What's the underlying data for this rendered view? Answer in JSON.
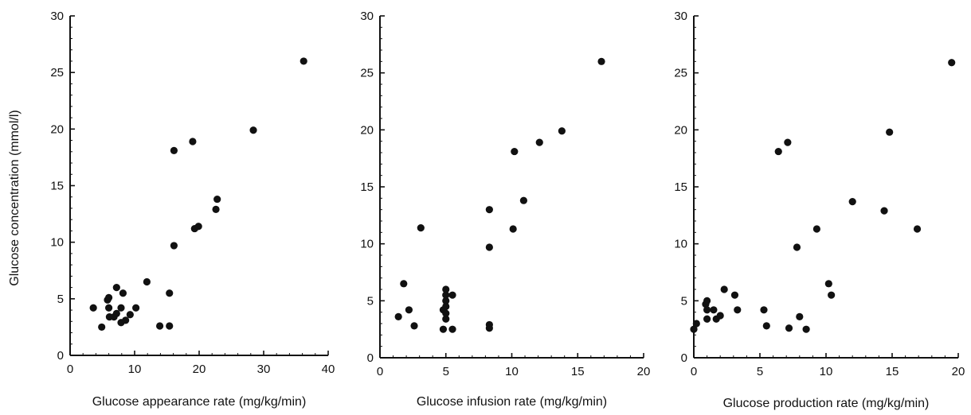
{
  "figure": {
    "y_axis_label": "Glucose concentration (mmol/l)"
  },
  "chart_data": [
    {
      "type": "scatter",
      "xlabel": "Glucose appearance rate (mg/kg/min)",
      "ylabel": "Glucose concentration (mmol/l)",
      "xlim": [
        0,
        40
      ],
      "ylim": [
        0,
        30
      ],
      "xticks": [
        0,
        10,
        20,
        30,
        40
      ],
      "yticks": [
        0,
        5,
        10,
        15,
        20,
        25,
        30
      ],
      "grid": false,
      "points": [
        {
          "x": 3.6,
          "y": 4.2
        },
        {
          "x": 4.9,
          "y": 2.5
        },
        {
          "x": 5.8,
          "y": 4.9
        },
        {
          "x": 6.0,
          "y": 5.1
        },
        {
          "x": 6.0,
          "y": 4.2
        },
        {
          "x": 6.1,
          "y": 3.4
        },
        {
          "x": 6.8,
          "y": 3.4
        },
        {
          "x": 7.2,
          "y": 3.7
        },
        {
          "x": 7.2,
          "y": 6.0
        },
        {
          "x": 7.9,
          "y": 2.9
        },
        {
          "x": 7.9,
          "y": 4.2
        },
        {
          "x": 8.2,
          "y": 5.5
        },
        {
          "x": 8.6,
          "y": 3.1
        },
        {
          "x": 9.3,
          "y": 3.6
        },
        {
          "x": 10.2,
          "y": 4.2
        },
        {
          "x": 11.9,
          "y": 6.5
        },
        {
          "x": 13.9,
          "y": 2.6
        },
        {
          "x": 15.4,
          "y": 2.6
        },
        {
          "x": 15.4,
          "y": 5.5
        },
        {
          "x": 16.1,
          "y": 9.7
        },
        {
          "x": 16.1,
          "y": 18.1
        },
        {
          "x": 19.0,
          "y": 18.9
        },
        {
          "x": 19.3,
          "y": 11.2
        },
        {
          "x": 19.9,
          "y": 11.4
        },
        {
          "x": 22.6,
          "y": 12.9
        },
        {
          "x": 22.8,
          "y": 13.8
        },
        {
          "x": 28.4,
          "y": 19.9
        },
        {
          "x": 36.2,
          "y": 26.0
        }
      ]
    },
    {
      "type": "scatter",
      "xlabel": "Glucose infusion rate (mg/kg/min)",
      "ylabel": "",
      "xlim": [
        0,
        20
      ],
      "ylim": [
        0,
        30
      ],
      "xticks": [
        0,
        5,
        10,
        15,
        20
      ],
      "yticks": [
        0,
        5,
        10,
        15,
        20,
        25,
        30
      ],
      "grid": false,
      "points": [
        {
          "x": 1.4,
          "y": 3.6
        },
        {
          "x": 1.8,
          "y": 6.5
        },
        {
          "x": 2.2,
          "y": 4.2
        },
        {
          "x": 2.6,
          "y": 2.8
        },
        {
          "x": 3.1,
          "y": 11.4
        },
        {
          "x": 4.8,
          "y": 2.5
        },
        {
          "x": 4.8,
          "y": 4.2
        },
        {
          "x": 5.0,
          "y": 3.4
        },
        {
          "x": 5.0,
          "y": 3.9
        },
        {
          "x": 5.0,
          "y": 4.5
        },
        {
          "x": 5.0,
          "y": 5.0
        },
        {
          "x": 5.0,
          "y": 5.5
        },
        {
          "x": 5.0,
          "y": 6.0
        },
        {
          "x": 5.5,
          "y": 2.5
        },
        {
          "x": 5.5,
          "y": 5.5
        },
        {
          "x": 8.3,
          "y": 13.0
        },
        {
          "x": 8.3,
          "y": 9.7
        },
        {
          "x": 8.3,
          "y": 2.9
        },
        {
          "x": 8.3,
          "y": 2.6
        },
        {
          "x": 10.2,
          "y": 18.1
        },
        {
          "x": 10.1,
          "y": 11.3
        },
        {
          "x": 10.9,
          "y": 13.8
        },
        {
          "x": 12.1,
          "y": 18.9
        },
        {
          "x": 13.8,
          "y": 19.9
        },
        {
          "x": 16.8,
          "y": 26.0
        }
      ]
    },
    {
      "type": "scatter",
      "xlabel": "Glucose production rate (mg/kg/min)",
      "ylabel": "",
      "xlim": [
        0,
        20
      ],
      "ylim": [
        0,
        30
      ],
      "xticks": [
        0,
        5,
        10,
        15,
        20
      ],
      "yticks": [
        0,
        5,
        10,
        15,
        20,
        25,
        30
      ],
      "grid": false,
      "points": [
        {
          "x": 0.0,
          "y": 2.5
        },
        {
          "x": 0.2,
          "y": 3.0
        },
        {
          "x": 0.9,
          "y": 4.7
        },
        {
          "x": 1.0,
          "y": 5.0
        },
        {
          "x": 1.0,
          "y": 4.2
        },
        {
          "x": 1.0,
          "y": 3.4
        },
        {
          "x": 1.5,
          "y": 4.2
        },
        {
          "x": 1.7,
          "y": 3.4
        },
        {
          "x": 2.0,
          "y": 3.7
        },
        {
          "x": 2.3,
          "y": 6.0
        },
        {
          "x": 3.1,
          "y": 5.5
        },
        {
          "x": 3.3,
          "y": 4.2
        },
        {
          "x": 5.3,
          "y": 4.2
        },
        {
          "x": 5.5,
          "y": 2.8
        },
        {
          "x": 6.4,
          "y": 18.1
        },
        {
          "x": 7.1,
          "y": 18.9
        },
        {
          "x": 7.2,
          "y": 2.6
        },
        {
          "x": 7.8,
          "y": 9.7
        },
        {
          "x": 8.0,
          "y": 3.6
        },
        {
          "x": 8.5,
          "y": 2.5
        },
        {
          "x": 9.3,
          "y": 11.3
        },
        {
          "x": 10.2,
          "y": 6.5
        },
        {
          "x": 10.4,
          "y": 5.5
        },
        {
          "x": 12.0,
          "y": 13.7
        },
        {
          "x": 14.4,
          "y": 12.9
        },
        {
          "x": 14.8,
          "y": 19.8
        },
        {
          "x": 16.9,
          "y": 11.3
        },
        {
          "x": 19.5,
          "y": 25.9
        }
      ]
    }
  ]
}
